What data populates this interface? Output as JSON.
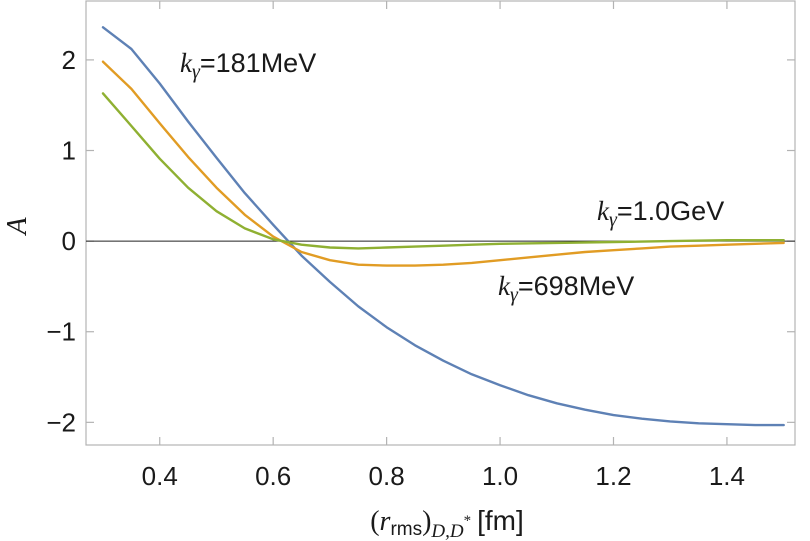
{
  "chart_data": {
    "type": "line",
    "title": "",
    "xlabel": "(r_rms)_{D,D*} [fm]",
    "xlabel_parts": {
      "open": "(",
      "r": "r",
      "rms": "rms",
      "close": ")",
      "sub": "D,D",
      "sup": "*",
      "unit": "[fm]"
    },
    "ylabel": "A",
    "xlim": [
      0.27,
      1.52
    ],
    "ylim": [
      -2.25,
      2.65
    ],
    "xticks": [
      0.4,
      0.6,
      0.8,
      1.0,
      1.2,
      1.4
    ],
    "xtick_labels": [
      "0.4",
      "0.6",
      "0.8",
      "1.0",
      "1.2",
      "1.4"
    ],
    "yticks": [
      -2,
      -1,
      0,
      1,
      2
    ],
    "ytick_labels": [
      "−2",
      "−1",
      "0",
      "1",
      "2"
    ],
    "grid": false,
    "reference_line_y": 0,
    "series": [
      {
        "name": "k_γ=181MeV",
        "color": "#5e81b5",
        "x": [
          0.3,
          0.35,
          0.4,
          0.45,
          0.5,
          0.55,
          0.6,
          0.65,
          0.7,
          0.75,
          0.8,
          0.85,
          0.9,
          0.95,
          1.0,
          1.05,
          1.1,
          1.15,
          1.2,
          1.25,
          1.3,
          1.35,
          1.4,
          1.45,
          1.5
        ],
        "y": [
          2.36,
          2.12,
          1.74,
          1.32,
          0.92,
          0.53,
          0.18,
          -0.16,
          -0.45,
          -0.72,
          -0.95,
          -1.15,
          -1.32,
          -1.47,
          -1.59,
          -1.7,
          -1.79,
          -1.86,
          -1.92,
          -1.96,
          -1.99,
          -2.01,
          -2.02,
          -2.03,
          -2.03
        ]
      },
      {
        "name": "k_γ=698MeV",
        "color": "#e19c24",
        "x": [
          0.3,
          0.35,
          0.4,
          0.45,
          0.5,
          0.55,
          0.6,
          0.65,
          0.7,
          0.75,
          0.8,
          0.85,
          0.9,
          0.95,
          1.0,
          1.05,
          1.1,
          1.15,
          1.2,
          1.25,
          1.3,
          1.35,
          1.4,
          1.45,
          1.5
        ],
        "y": [
          1.98,
          1.68,
          1.3,
          0.93,
          0.59,
          0.29,
          0.05,
          -0.12,
          -0.21,
          -0.26,
          -0.27,
          -0.27,
          -0.26,
          -0.24,
          -0.21,
          -0.18,
          -0.15,
          -0.12,
          -0.1,
          -0.08,
          -0.06,
          -0.05,
          -0.04,
          -0.03,
          -0.02
        ]
      },
      {
        "name": "k_γ=1.0GeV",
        "color": "#8fb032",
        "x": [
          0.3,
          0.35,
          0.4,
          0.45,
          0.5,
          0.55,
          0.6,
          0.65,
          0.7,
          0.75,
          0.8,
          0.85,
          0.9,
          0.95,
          1.0,
          1.1,
          1.2,
          1.3,
          1.4,
          1.5
        ],
        "y": [
          1.63,
          1.27,
          0.91,
          0.59,
          0.33,
          0.14,
          0.02,
          -0.04,
          -0.07,
          -0.08,
          -0.07,
          -0.06,
          -0.05,
          -0.04,
          -0.03,
          -0.02,
          -0.01,
          0.0,
          0.01,
          0.01
        ]
      }
    ],
    "annotations": [
      {
        "k": "k",
        "sub": "γ",
        "text": "=181MeV"
      },
      {
        "k": "k",
        "sub": "γ",
        "text": "=1.0GeV"
      },
      {
        "k": "k",
        "sub": "γ",
        "text": "=698MeV"
      }
    ]
  }
}
